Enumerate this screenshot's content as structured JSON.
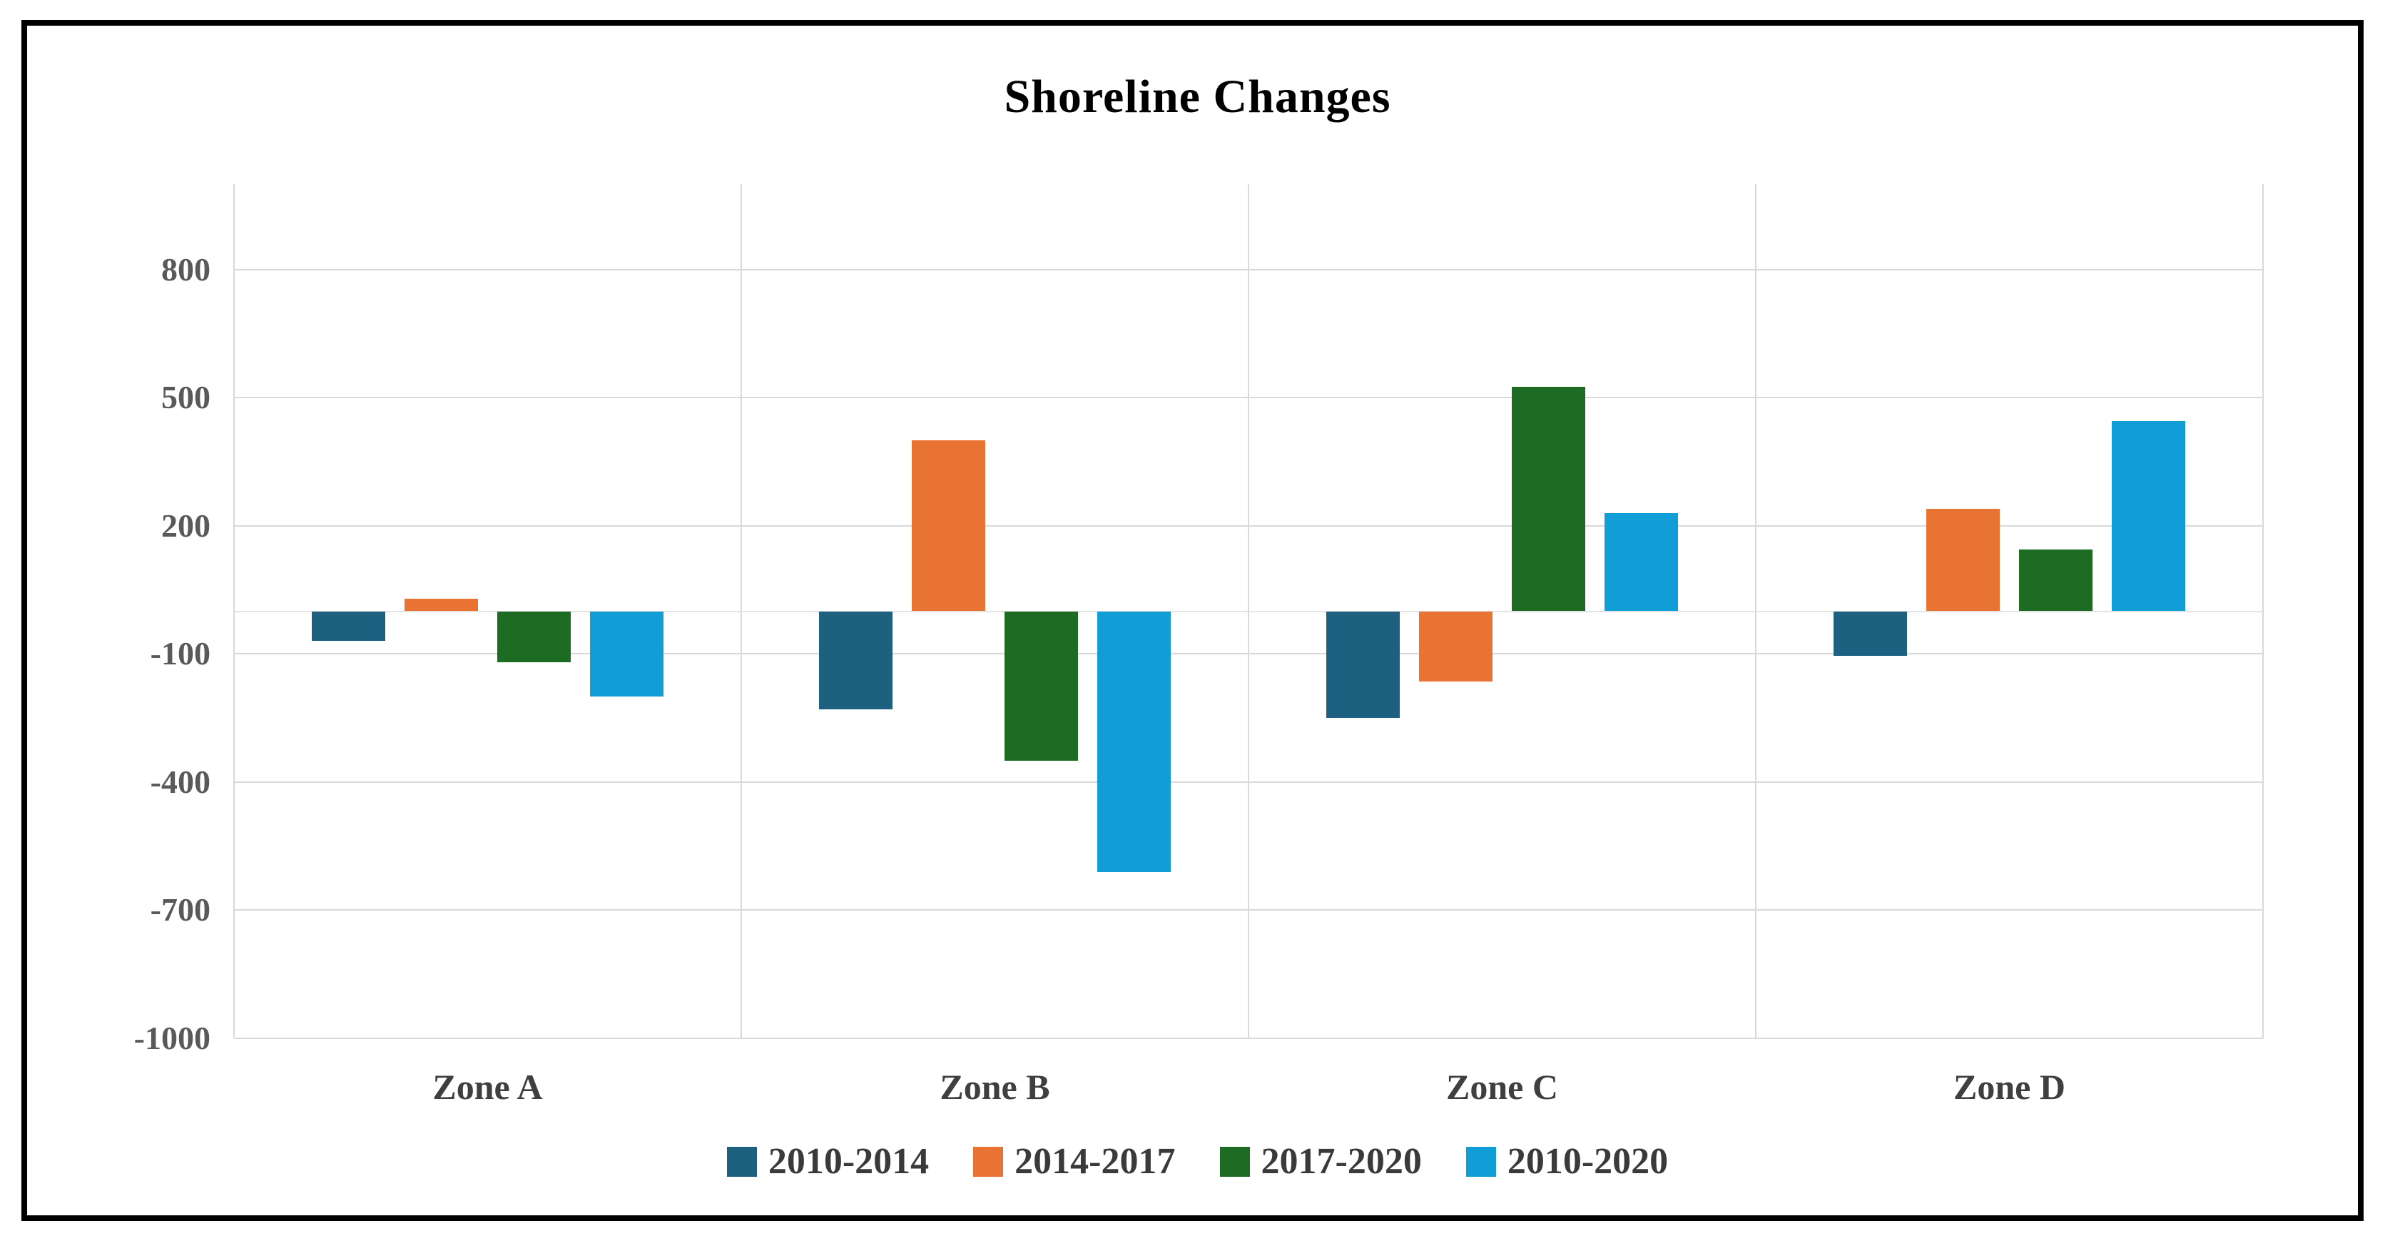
{
  "chart_data": {
    "type": "bar",
    "title": "Shoreline Changes",
    "categories": [
      "Zone A",
      "Zone B",
      "Zone C",
      "Zone D"
    ],
    "series": [
      {
        "name": "2010-2014",
        "color": "#1E6080",
        "values": [
          -70,
          -230,
          -250,
          -105
        ]
      },
      {
        "name": "2014-2017",
        "color": "#E97332",
        "values": [
          30,
          400,
          -165,
          240
        ]
      },
      {
        "name": "2017-2020",
        "color": "#1E6B24",
        "values": [
          -120,
          -350,
          525,
          145
        ]
      },
      {
        "name": "2010-2020",
        "color": "#119DD6",
        "values": [
          -200,
          -610,
          230,
          445
        ]
      }
    ],
    "y_ticks": [
      800,
      500,
      200,
      -100,
      -400,
      -700,
      -1000
    ],
    "ylim": [
      -1000,
      1000
    ],
    "xlabel": "",
    "ylabel": "",
    "grid": true,
    "legend_position": "bottom",
    "colors": {
      "gridline": "#d9d9d9",
      "axis_tick_text": "#595959",
      "category_text": "#3f3f3f",
      "legend_text": "#3a3a3a",
      "title_text": "#000000",
      "frame_border": "#000000",
      "background": "#ffffff"
    }
  }
}
